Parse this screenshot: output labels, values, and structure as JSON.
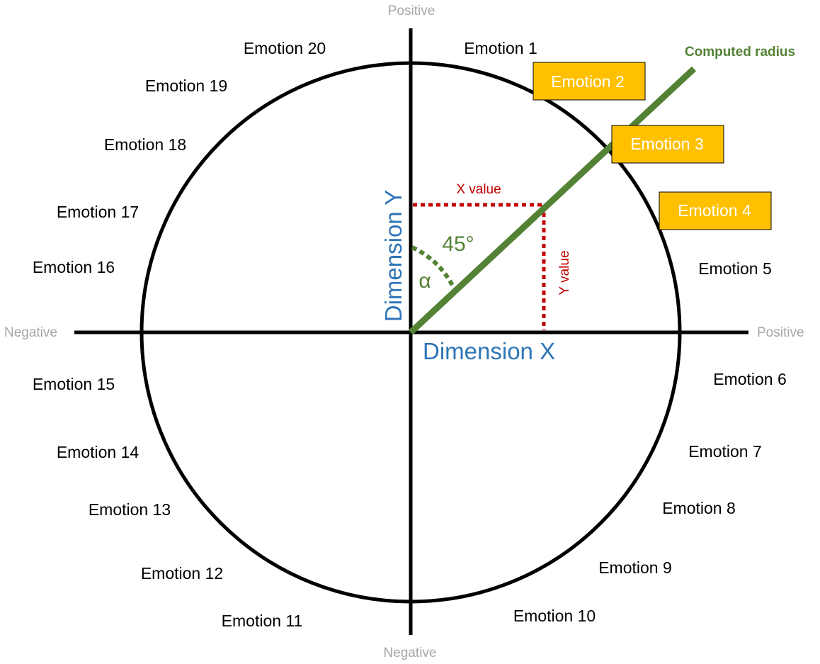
{
  "poles": {
    "top": "Positive",
    "bottom": "Negative",
    "left": "Negative",
    "right": "Positive"
  },
  "axes": {
    "x_title": "Dimension X",
    "y_title": "Dimension Y"
  },
  "radius_label": "Computed radius",
  "angle": {
    "value_label": "45°",
    "symbol": "α",
    "degrees": 45
  },
  "projections": {
    "x_label": "X value",
    "y_label": "Y value"
  },
  "emotions": [
    {
      "label": "Emotion 1",
      "highlighted": false
    },
    {
      "label": "Emotion 2",
      "highlighted": true
    },
    {
      "label": "Emotion 3",
      "highlighted": true
    },
    {
      "label": "Emotion 4",
      "highlighted": true
    },
    {
      "label": "Emotion 5",
      "highlighted": false
    },
    {
      "label": "Emotion 6",
      "highlighted": false
    },
    {
      "label": "Emotion 7",
      "highlighted": false
    },
    {
      "label": "Emotion 8",
      "highlighted": false
    },
    {
      "label": "Emotion 9",
      "highlighted": false
    },
    {
      "label": "Emotion 10",
      "highlighted": false
    },
    {
      "label": "Emotion 11",
      "highlighted": false
    },
    {
      "label": "Emotion 12",
      "highlighted": false
    },
    {
      "label": "Emotion 13",
      "highlighted": false
    },
    {
      "label": "Emotion 14",
      "highlighted": false
    },
    {
      "label": "Emotion 15",
      "highlighted": false
    },
    {
      "label": "Emotion 16",
      "highlighted": false
    },
    {
      "label": "Emotion 17",
      "highlighted": false
    },
    {
      "label": "Emotion 18",
      "highlighted": false
    },
    {
      "label": "Emotion 19",
      "highlighted": false
    },
    {
      "label": "Emotion 20",
      "highlighted": false
    }
  ],
  "colors": {
    "axis": "#000000",
    "radius": "#548235",
    "projection": "#c00000",
    "axis_title": "#2e75b6",
    "highlight_fill": "#ffc000",
    "pole_text": "#a6a6a6"
  }
}
